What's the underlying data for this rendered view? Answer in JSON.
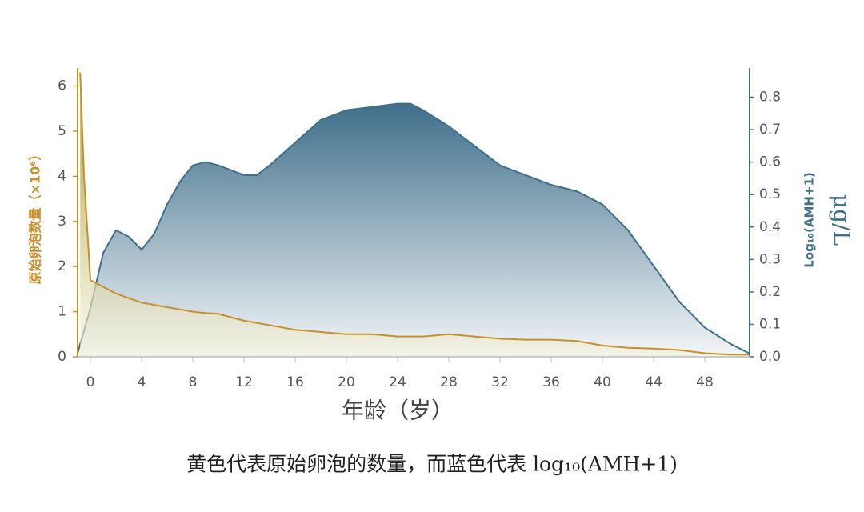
{
  "chart_data": {
    "type": "area",
    "x_label": "年龄（岁）",
    "y_label": "原始卵泡数量（×10⁶）",
    "y2_label": "Log₁₀(AMH+1)",
    "y2_unit": "μg/L",
    "caption": "黄色代表原始卵泡的数量，而蓝色代表 log₁₀(AMH+1)",
    "x": [
      -1,
      -0.8,
      -0.5,
      0,
      1,
      2,
      3,
      4,
      5,
      6,
      7,
      8,
      9,
      10,
      12,
      13,
      14,
      16,
      18,
      20,
      22,
      24,
      25,
      26,
      28,
      30,
      32,
      34,
      36,
      38,
      40,
      42,
      44,
      46,
      48,
      50,
      51.5
    ],
    "xlim": [
      -1,
      51.5
    ],
    "xticks": [
      0,
      4,
      8,
      12,
      16,
      20,
      24,
      28,
      32,
      36,
      40,
      44,
      48
    ],
    "ylim": [
      0,
      6.4
    ],
    "yticks": [
      0,
      1,
      2,
      3,
      4,
      5,
      6
    ],
    "y2lim": [
      0,
      0.89
    ],
    "y2ticks": [
      {
        "value": 0,
        "label": "0.0"
      },
      0.1,
      0.2,
      0.3,
      0.4,
      0.5,
      0.6,
      0.7,
      0.8
    ],
    "series": [
      {
        "name": "Log₁₀(AMH+1)",
        "axis": "y2",
        "color": "#3d6e8a",
        "values": [
          0.01,
          0.04,
          0.08,
          0.15,
          0.32,
          0.39,
          0.37,
          0.33,
          0.38,
          0.47,
          0.54,
          0.59,
          0.6,
          0.59,
          0.56,
          0.56,
          0.59,
          0.66,
          0.73,
          0.76,
          0.77,
          0.78,
          0.78,
          0.76,
          0.71,
          0.65,
          0.59,
          0.56,
          0.53,
          0.51,
          0.47,
          0.39,
          0.28,
          0.17,
          0.09,
          0.04,
          0.01
        ]
      },
      {
        "name": "原始卵泡数量",
        "axis": "y",
        "color": "#c8902a",
        "values": [
          null,
          6.3,
          4,
          1.7,
          1.55,
          1.4,
          1.3,
          1.2,
          1.15,
          1.1,
          1.05,
          1.0,
          0.97,
          0.95,
          0.8,
          0.75,
          0.7,
          0.6,
          0.55,
          0.5,
          0.5,
          0.45,
          0.45,
          0.45,
          0.5,
          0.45,
          0.4,
          0.38,
          0.38,
          0.35,
          0.25,
          0.2,
          0.18,
          0.15,
          0.08,
          0.05,
          0.05
        ]
      }
    ]
  }
}
